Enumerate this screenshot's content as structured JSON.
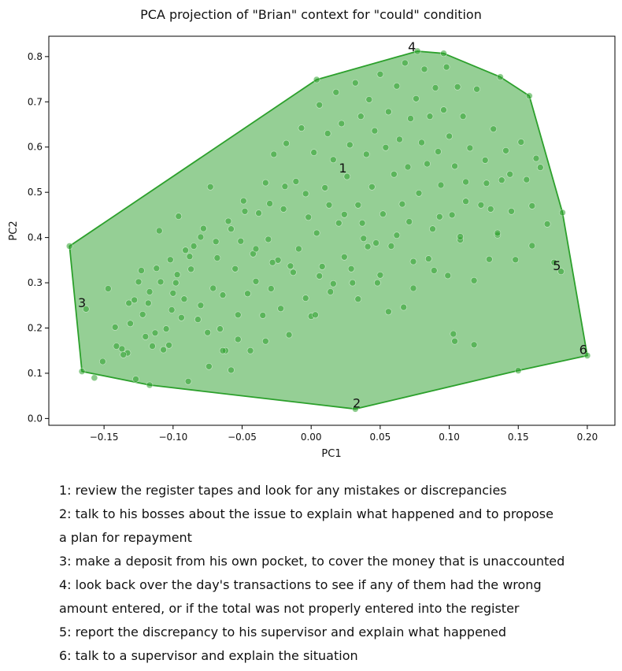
{
  "chart_data": {
    "type": "scatter",
    "title": "PCA projection of \"Brian\" context for \"could\" condition",
    "xlabel": "PC1",
    "ylabel": "PC2",
    "xlim": [
      -0.19,
      0.22
    ],
    "ylim": [
      -0.015,
      0.845
    ],
    "xticks": [
      -0.15,
      -0.1,
      -0.05,
      0.0,
      0.05,
      0.1,
      0.15,
      0.2
    ],
    "xtick_labels": [
      "−0.15",
      "−0.10",
      "−0.05",
      "0.00",
      "0.05",
      "0.10",
      "0.15",
      "0.20"
    ],
    "yticks": [
      0.0,
      0.1,
      0.2,
      0.3,
      0.4,
      0.5,
      0.6,
      0.7,
      0.8
    ],
    "ytick_labels": [
      "0.0",
      "0.1",
      "0.2",
      "0.3",
      "0.4",
      "0.5",
      "0.6",
      "0.7",
      "0.8"
    ],
    "grid": false,
    "colors": {
      "fill": "#2ca02c",
      "stroke": "#2ca02c",
      "point": "#2ca02c"
    },
    "hull": [
      [
        -0.175,
        0.381
      ],
      [
        -0.166,
        0.104
      ],
      [
        -0.117,
        0.074
      ],
      [
        0.032,
        0.021
      ],
      [
        0.15,
        0.106
      ],
      [
        0.2,
        0.139
      ],
      [
        0.182,
        0.455
      ],
      [
        0.158,
        0.713
      ],
      [
        0.137,
        0.755
      ],
      [
        0.096,
        0.807
      ],
      [
        0.077,
        0.812
      ],
      [
        0.004,
        0.749
      ]
    ],
    "cluster_labels": [
      {
        "text": "1",
        "x": 0.023,
        "y": 0.552
      },
      {
        "text": "2",
        "x": 0.033,
        "y": 0.032
      },
      {
        "text": "3",
        "x": -0.166,
        "y": 0.254
      },
      {
        "text": "4",
        "x": 0.073,
        "y": 0.82
      },
      {
        "text": "5",
        "x": 0.178,
        "y": 0.336
      },
      {
        "text": "6",
        "x": 0.197,
        "y": 0.15
      }
    ],
    "points": [
      [
        -0.175,
        0.381
      ],
      [
        -0.166,
        0.104
      ],
      [
        -0.117,
        0.074
      ],
      [
        0.032,
        0.021
      ],
      [
        0.15,
        0.106
      ],
      [
        0.2,
        0.139
      ],
      [
        0.182,
        0.455
      ],
      [
        0.158,
        0.713
      ],
      [
        0.137,
        0.755
      ],
      [
        0.096,
        0.807
      ],
      [
        0.077,
        0.812
      ],
      [
        0.004,
        0.749
      ],
      [
        -0.163,
        0.242
      ],
      [
        -0.157,
        0.09
      ],
      [
        -0.151,
        0.126
      ],
      [
        -0.142,
        0.202
      ],
      [
        -0.137,
        0.154
      ],
      [
        -0.133,
        0.145
      ],
      [
        -0.131,
        0.21
      ],
      [
        -0.128,
        0.262
      ],
      [
        -0.125,
        0.302
      ],
      [
        -0.122,
        0.23
      ],
      [
        -0.12,
        0.181
      ],
      [
        -0.118,
        0.255
      ],
      [
        -0.115,
        0.16
      ],
      [
        -0.112,
        0.332
      ],
      [
        -0.11,
        0.415
      ],
      [
        -0.107,
        0.152
      ],
      [
        -0.105,
        0.198
      ],
      [
        -0.103,
        0.162
      ],
      [
        -0.1,
        0.277
      ],
      [
        -0.098,
        0.3
      ],
      [
        -0.096,
        0.447
      ],
      [
        -0.094,
        0.223
      ],
      [
        -0.092,
        0.264
      ],
      [
        -0.089,
        0.082
      ],
      [
        -0.087,
        0.33
      ],
      [
        -0.085,
        0.381
      ],
      [
        -0.082,
        0.219
      ],
      [
        -0.08,
        0.25
      ],
      [
        -0.078,
        0.42
      ],
      [
        -0.075,
        0.19
      ],
      [
        -0.073,
        0.512
      ],
      [
        -0.071,
        0.288
      ],
      [
        -0.068,
        0.355
      ],
      [
        -0.066,
        0.198
      ],
      [
        -0.064,
        0.273
      ],
      [
        -0.062,
        0.15
      ],
      [
        -0.06,
        0.436
      ],
      [
        -0.058,
        0.107
      ],
      [
        -0.055,
        0.331
      ],
      [
        -0.053,
        0.229
      ],
      [
        -0.051,
        0.392
      ],
      [
        -0.049,
        0.481
      ],
      [
        -0.046,
        0.276
      ],
      [
        -0.044,
        0.15
      ],
      [
        -0.042,
        0.364
      ],
      [
        -0.04,
        0.303
      ],
      [
        -0.038,
        0.454
      ],
      [
        -0.035,
        0.228
      ],
      [
        -0.033,
        0.521
      ],
      [
        -0.031,
        0.396
      ],
      [
        -0.029,
        0.287
      ],
      [
        -0.027,
        0.584
      ],
      [
        -0.024,
        0.35
      ],
      [
        -0.022,
        0.243
      ],
      [
        -0.02,
        0.463
      ],
      [
        -0.018,
        0.608
      ],
      [
        -0.016,
        0.185
      ],
      [
        -0.013,
        0.323
      ],
      [
        -0.011,
        0.524
      ],
      [
        -0.009,
        0.375
      ],
      [
        -0.007,
        0.642
      ],
      [
        -0.004,
        0.266
      ],
      [
        -0.002,
        0.445
      ],
      [
        0.0,
        0.226
      ],
      [
        0.002,
        0.588
      ],
      [
        0.004,
        0.41
      ],
      [
        0.006,
        0.693
      ],
      [
        0.008,
        0.336
      ],
      [
        0.01,
        0.51
      ],
      [
        0.012,
        0.63
      ],
      [
        0.014,
        0.28
      ],
      [
        0.016,
        0.572
      ],
      [
        0.018,
        0.721
      ],
      [
        0.02,
        0.432
      ],
      [
        0.022,
        0.652
      ],
      [
        0.024,
        0.357
      ],
      [
        0.026,
        0.535
      ],
      [
        0.028,
        0.605
      ],
      [
        0.03,
        0.3
      ],
      [
        0.032,
        0.742
      ],
      [
        0.034,
        0.472
      ],
      [
        0.036,
        0.668
      ],
      [
        0.038,
        0.398
      ],
      [
        0.04,
        0.584
      ],
      [
        0.042,
        0.705
      ],
      [
        0.044,
        0.512
      ],
      [
        0.046,
        0.636
      ],
      [
        0.048,
        0.3
      ],
      [
        0.05,
        0.761
      ],
      [
        0.052,
        0.452
      ],
      [
        0.054,
        0.599
      ],
      [
        0.056,
        0.678
      ],
      [
        0.058,
        0.381
      ],
      [
        0.06,
        0.54
      ],
      [
        0.062,
        0.735
      ],
      [
        0.064,
        0.617
      ],
      [
        0.066,
        0.474
      ],
      [
        0.068,
        0.786
      ],
      [
        0.07,
        0.556
      ],
      [
        0.072,
        0.663
      ],
      [
        0.074,
        0.347
      ],
      [
        0.076,
        0.707
      ],
      [
        0.078,
        0.498
      ],
      [
        0.08,
        0.61
      ],
      [
        0.082,
        0.772
      ],
      [
        0.084,
        0.563
      ],
      [
        0.086,
        0.668
      ],
      [
        0.088,
        0.419
      ],
      [
        0.09,
        0.731
      ],
      [
        0.092,
        0.59
      ],
      [
        0.094,
        0.516
      ],
      [
        0.096,
        0.682
      ],
      [
        0.098,
        0.777
      ],
      [
        0.1,
        0.624
      ],
      [
        0.102,
        0.45
      ],
      [
        0.104,
        0.558
      ],
      [
        0.106,
        0.733
      ],
      [
        0.108,
        0.395
      ],
      [
        0.11,
        0.668
      ],
      [
        0.112,
        0.523
      ],
      [
        0.115,
        0.598
      ],
      [
        0.118,
        0.305
      ],
      [
        0.12,
        0.728
      ],
      [
        0.123,
        0.472
      ],
      [
        0.126,
        0.571
      ],
      [
        0.129,
        0.352
      ],
      [
        0.132,
        0.64
      ],
      [
        0.135,
        0.406
      ],
      [
        0.138,
        0.527
      ],
      [
        0.141,
        0.592
      ],
      [
        0.145,
        0.458
      ],
      [
        0.148,
        0.351
      ],
      [
        0.152,
        0.611
      ],
      [
        0.156,
        0.528
      ],
      [
        0.16,
        0.382
      ],
      [
        0.163,
        0.575
      ],
      [
        0.166,
        0.555
      ],
      [
        0.171,
        0.43
      ],
      [
        0.176,
        0.345
      ],
      [
        0.181,
        0.325
      ],
      [
        0.104,
        0.171
      ],
      [
        0.103,
        0.187
      ],
      [
        0.118,
        0.163
      ],
      [
        0.074,
        0.288
      ],
      [
        0.067,
        0.246
      ],
      [
        0.056,
        0.236
      ],
      [
        0.034,
        0.264
      ],
      [
        0.003,
        0.229
      ],
      [
        -0.033,
        0.171
      ],
      [
        -0.053,
        0.175
      ],
      [
        -0.064,
        0.15
      ],
      [
        -0.074,
        0.115
      ],
      [
        -0.127,
        0.087
      ],
      [
        -0.136,
        0.141
      ],
      [
        -0.141,
        0.16
      ],
      [
        0.085,
        0.353
      ],
      [
        0.108,
        0.402
      ],
      [
        0.135,
        0.41
      ],
      [
        0.13,
        0.463
      ],
      [
        0.099,
        0.316
      ],
      [
        0.089,
        0.327
      ],
      [
        0.05,
        0.317
      ],
      [
        0.041,
        0.38
      ],
      [
        0.029,
        0.331
      ],
      [
        0.016,
        0.298
      ],
      [
        0.006,
        0.315
      ],
      [
        -0.015,
        0.337
      ],
      [
        -0.028,
        0.345
      ],
      [
        -0.04,
        0.375
      ],
      [
        -0.088,
        0.358
      ],
      [
        -0.097,
        0.318
      ],
      [
        -0.101,
        0.24
      ],
      [
        -0.113,
        0.189
      ],
      [
        -0.117,
        0.28
      ],
      [
        -0.132,
        0.255
      ],
      [
        -0.147,
        0.287
      ],
      [
        0.16,
        0.47
      ],
      [
        0.144,
        0.54
      ],
      [
        0.127,
        0.52
      ],
      [
        0.112,
        0.48
      ],
      [
        0.093,
        0.446
      ],
      [
        0.071,
        0.435
      ],
      [
        0.062,
        0.405
      ],
      [
        0.047,
        0.388
      ],
      [
        0.037,
        0.432
      ],
      [
        0.024,
        0.451
      ],
      [
        0.013,
        0.472
      ],
      [
        -0.004,
        0.497
      ],
      [
        -0.019,
        0.513
      ],
      [
        -0.03,
        0.475
      ],
      [
        -0.048,
        0.458
      ],
      [
        -0.058,
        0.419
      ],
      [
        -0.069,
        0.391
      ],
      [
        -0.08,
        0.401
      ],
      [
        -0.091,
        0.372
      ],
      [
        -0.102,
        0.351
      ],
      [
        -0.109,
        0.302
      ],
      [
        -0.123,
        0.327
      ]
    ]
  },
  "legend": [
    "1: review the register tapes and look for any mistakes or discrepancies",
    "2: talk to his bosses about the issue to explain what happened and to propose",
    "a plan for repayment",
    "3: make a deposit from his own pocket, to cover the money that is unaccounted",
    "4: look back over the day's transactions to see if any of them had the wrong",
    "amount entered, or if the total was not properly entered into the register",
    "5: report the discrepancy to his supervisor and explain what happened",
    "6: talk to a supervisor and explain the situation"
  ]
}
